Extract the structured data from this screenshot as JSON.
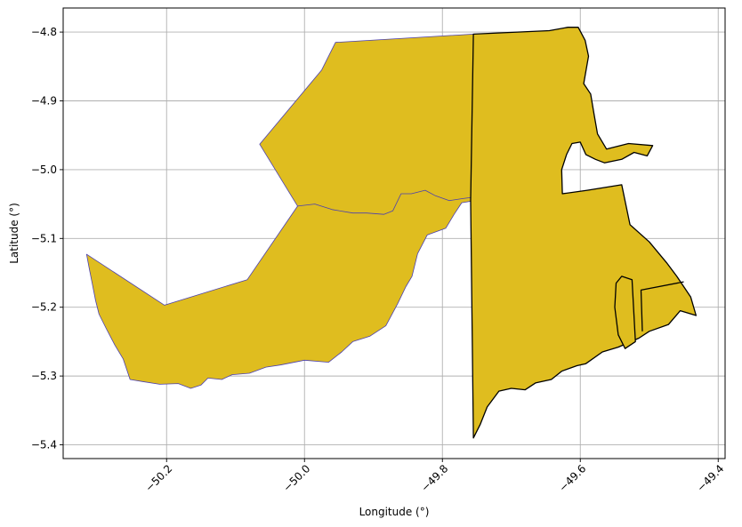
{
  "chart_data": {
    "type": "map",
    "title": "",
    "xlabel": "Longitude (°)",
    "ylabel": "Latitude (°)",
    "xlim": [
      -50.35,
      -49.39
    ],
    "ylim": [
      -5.42,
      -4.765
    ],
    "grid": true,
    "x_ticks": [
      {
        "value": -50.2,
        "label": "−50.2"
      },
      {
        "value": -50.0,
        "label": "−50.0"
      },
      {
        "value": -49.8,
        "label": "−49.8"
      },
      {
        "value": -49.6,
        "label": "−49.6"
      },
      {
        "value": -49.4,
        "label": "−49.4"
      }
    ],
    "y_ticks": [
      {
        "value": -4.8,
        "label": "−4.8"
      },
      {
        "value": -4.9,
        "label": "−4.9"
      },
      {
        "value": -5.0,
        "label": "−5.0"
      },
      {
        "value": -5.1,
        "label": "−5.1"
      },
      {
        "value": -5.2,
        "label": "−5.2"
      },
      {
        "value": -5.3,
        "label": "−5.3"
      },
      {
        "value": -5.4,
        "label": "−5.4"
      }
    ],
    "regions": [
      {
        "id": "western-region",
        "fill": "#dfbd1f",
        "edge": "#4a3fb0",
        "outline": [
          [
            -50.316,
            -5.123
          ],
          [
            -50.203,
            -5.197
          ],
          [
            -50.083,
            -5.16
          ],
          [
            -50.01,
            -5.053
          ],
          [
            -50.065,
            -4.963
          ],
          [
            -49.975,
            -4.855
          ],
          [
            -49.955,
            -4.815
          ],
          [
            -49.755,
            -4.803
          ],
          [
            -49.753,
            -5.045
          ],
          [
            -49.772,
            -5.048
          ],
          [
            -49.783,
            -5.065
          ],
          [
            -49.795,
            -5.085
          ],
          [
            -49.822,
            -5.095
          ],
          [
            -49.836,
            -5.122
          ],
          [
            -49.844,
            -5.155
          ],
          [
            -49.853,
            -5.17
          ],
          [
            -49.865,
            -5.195
          ],
          [
            -49.882,
            -5.227
          ],
          [
            -49.905,
            -5.242
          ],
          [
            -49.93,
            -5.25
          ],
          [
            -49.946,
            -5.265
          ],
          [
            -49.965,
            -5.28
          ],
          [
            -50.0,
            -5.277
          ],
          [
            -50.035,
            -5.284
          ],
          [
            -50.056,
            -5.287
          ],
          [
            -50.08,
            -5.296
          ],
          [
            -50.105,
            -5.298
          ],
          [
            -50.12,
            -5.305
          ],
          [
            -50.14,
            -5.303
          ],
          [
            -50.15,
            -5.313
          ],
          [
            -50.165,
            -5.318
          ],
          [
            -50.183,
            -5.311
          ],
          [
            -50.21,
            -5.312
          ],
          [
            -50.235,
            -5.308
          ],
          [
            -50.253,
            -5.305
          ],
          [
            -50.258,
            -5.29
          ],
          [
            -50.263,
            -5.275
          ],
          [
            -50.275,
            -5.255
          ],
          [
            -50.287,
            -5.232
          ],
          [
            -50.298,
            -5.21
          ],
          [
            -50.303,
            -5.19
          ],
          [
            -50.308,
            -5.165
          ],
          [
            -50.312,
            -5.145
          ]
        ]
      },
      {
        "id": "river-boundary",
        "fill": "none",
        "edge": "#4a3fb0",
        "outline": [
          [
            -50.01,
            -5.053
          ],
          [
            -49.985,
            -5.05
          ],
          [
            -49.96,
            -5.058
          ],
          [
            -49.93,
            -5.063
          ],
          [
            -49.91,
            -5.063
          ],
          [
            -49.885,
            -5.065
          ],
          [
            -49.872,
            -5.06
          ],
          [
            -49.86,
            -5.035
          ],
          [
            -49.845,
            -5.035
          ],
          [
            -49.825,
            -5.03
          ],
          [
            -49.81,
            -5.038
          ],
          [
            -49.79,
            -5.045
          ],
          [
            -49.77,
            -5.042
          ],
          [
            -49.755,
            -5.04
          ]
        ]
      },
      {
        "id": "central-eastern-region",
        "fill": "#dfbd1f",
        "edge": "#000000",
        "outline": [
          [
            -49.755,
            -4.803
          ],
          [
            -49.645,
            -4.798
          ],
          [
            -49.618,
            -4.793
          ],
          [
            -49.603,
            -4.793
          ],
          [
            -49.593,
            -4.812
          ],
          [
            -49.588,
            -4.835
          ],
          [
            -49.595,
            -4.875
          ],
          [
            -49.585,
            -4.89
          ],
          [
            -49.58,
            -4.92
          ],
          [
            -49.575,
            -4.948
          ],
          [
            -49.562,
            -4.97
          ],
          [
            -49.53,
            -4.962
          ],
          [
            -49.495,
            -4.965
          ],
          [
            -49.503,
            -4.98
          ],
          [
            -49.522,
            -4.975
          ],
          [
            -49.54,
            -4.985
          ],
          [
            -49.565,
            -4.99
          ],
          [
            -49.578,
            -4.985
          ],
          [
            -49.592,
            -4.978
          ],
          [
            -49.6,
            -4.96
          ],
          [
            -49.612,
            -4.962
          ],
          [
            -49.62,
            -4.978
          ],
          [
            -49.627,
            -5.0
          ],
          [
            -49.626,
            -5.035
          ],
          [
            -49.59,
            -5.03
          ],
          [
            -49.54,
            -5.022
          ],
          [
            -49.528,
            -5.08
          ],
          [
            -49.5,
            -5.105
          ],
          [
            -49.475,
            -5.135
          ],
          [
            -49.46,
            -5.155
          ],
          [
            -49.44,
            -5.185
          ],
          [
            -49.432,
            -5.212
          ],
          [
            -49.455,
            -5.205
          ],
          [
            -49.472,
            -5.225
          ],
          [
            -49.5,
            -5.235
          ],
          [
            -49.515,
            -5.245
          ],
          [
            -49.545,
            -5.258
          ],
          [
            -49.568,
            -5.265
          ],
          [
            -49.592,
            -5.282
          ],
          [
            -49.605,
            -5.285
          ],
          [
            -49.627,
            -5.293
          ],
          [
            -49.642,
            -5.305
          ],
          [
            -49.665,
            -5.31
          ],
          [
            -49.68,
            -5.32
          ],
          [
            -49.7,
            -5.318
          ],
          [
            -49.718,
            -5.322
          ],
          [
            -49.735,
            -5.345
          ],
          [
            -49.745,
            -5.37
          ],
          [
            -49.755,
            -5.39
          ],
          [
            -49.759,
            -5.045
          ]
        ]
      },
      {
        "id": "eastern-subdivision",
        "fill": "none",
        "edge": "#000000",
        "outline": [
          [
            -49.51,
            -5.235
          ],
          [
            -49.512,
            -5.175
          ],
          [
            -49.45,
            -5.163
          ]
        ]
      },
      {
        "id": "narrow-strip",
        "fill": "#dfbd1f",
        "edge": "#000000",
        "outline": [
          [
            -49.54,
            -5.155
          ],
          [
            -49.525,
            -5.16
          ],
          [
            -49.52,
            -5.25
          ],
          [
            -49.535,
            -5.26
          ],
          [
            -49.545,
            -5.24
          ],
          [
            -49.55,
            -5.2
          ],
          [
            -49.548,
            -5.165
          ]
        ]
      }
    ]
  }
}
